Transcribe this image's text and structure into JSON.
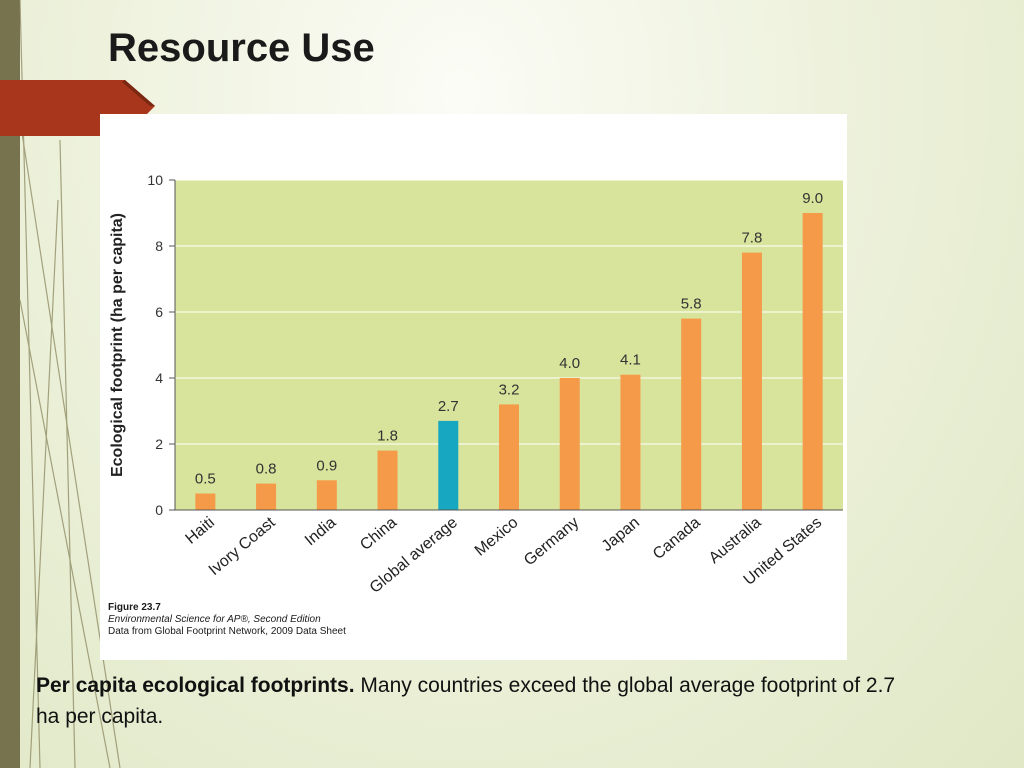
{
  "slide": {
    "title": "Resource Use",
    "caption_bold": "Per capita ecological footprints.",
    "caption_text": " Many countries exceed the global average footprint of 2.7 ha per capita."
  },
  "figure": {
    "number": "Figure 23.7",
    "source": "Environmental Science for AP®, Second Edition",
    "data_note": "Data from Global Footprint Network, 2009 Data Sheet"
  },
  "colors": {
    "plot_bg": "#d8e49b",
    "bar_default": "#f59a48",
    "bar_highlight": "#17a7c0",
    "ribbon": "#a8361c",
    "sidebar": "#78734f"
  },
  "chart_data": {
    "type": "bar",
    "title": "",
    "xlabel": "",
    "ylabel": "Ecological footprint (ha per capita)",
    "ylim": [
      0,
      10
    ],
    "yticks": [
      0,
      2,
      4,
      6,
      8,
      10
    ],
    "categories": [
      "Haiti",
      "Ivory Coast",
      "India",
      "China",
      "Global average",
      "Mexico",
      "Germany",
      "Japan",
      "Canada",
      "Australia",
      "United States"
    ],
    "values": [
      0.5,
      0.8,
      0.9,
      1.8,
      2.7,
      3.2,
      4.0,
      4.1,
      5.8,
      7.8,
      9.0
    ],
    "value_labels": [
      "0.5",
      "0.8",
      "0.9",
      "1.8",
      "2.7",
      "3.2",
      "4.0",
      "4.1",
      "5.8",
      "7.8",
      "9.0"
    ],
    "highlight": "Global average",
    "grid": true
  }
}
